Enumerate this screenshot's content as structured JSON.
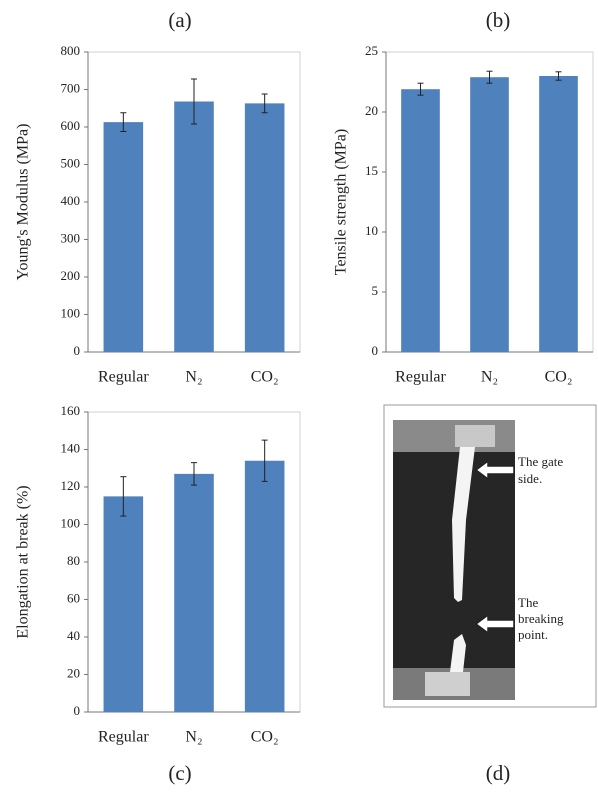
{
  "chart_data": [
    {
      "type": "bar",
      "title": "(a)",
      "y_label": "Young's Modulus (MPa)",
      "categories": [
        "Regular",
        "N₂",
        "CO₂"
      ],
      "values": [
        613,
        668,
        663
      ],
      "errors": [
        25,
        60,
        25
      ],
      "color": "#4f81bd",
      "ylim": [
        0,
        800
      ],
      "yticks": [
        0,
        100,
        200,
        300,
        400,
        500,
        600,
        700,
        800
      ]
    },
    {
      "type": "bar",
      "title": "(b)",
      "y_label": "Tensile strength (MPa)",
      "categories": [
        "Regular",
        "N₂",
        "CO₂"
      ],
      "values": [
        21.9,
        22.9,
        23.0
      ],
      "errors": [
        0.5,
        0.5,
        0.35
      ],
      "color": "#4f81bd",
      "ylim": [
        0,
        25
      ],
      "yticks": [
        0,
        5,
        10,
        15,
        20,
        25
      ]
    },
    {
      "type": "bar",
      "title": "(c)",
      "y_label": "Elongation at break (%)",
      "categories": [
        "Regular",
        "N₂",
        "CO₂"
      ],
      "values": [
        115,
        127,
        134
      ],
      "errors": [
        10.5,
        6,
        11
      ],
      "color": "#4f81bd",
      "ylim": [
        0,
        160
      ],
      "yticks": [
        0,
        20,
        40,
        60,
        80,
        100,
        120,
        140,
        160
      ]
    }
  ],
  "photo": {
    "label": "(d)",
    "annotations": [
      {
        "lines": [
          "The gate",
          "side."
        ]
      },
      {
        "lines": [
          "The",
          "breaking",
          "point."
        ]
      }
    ]
  }
}
